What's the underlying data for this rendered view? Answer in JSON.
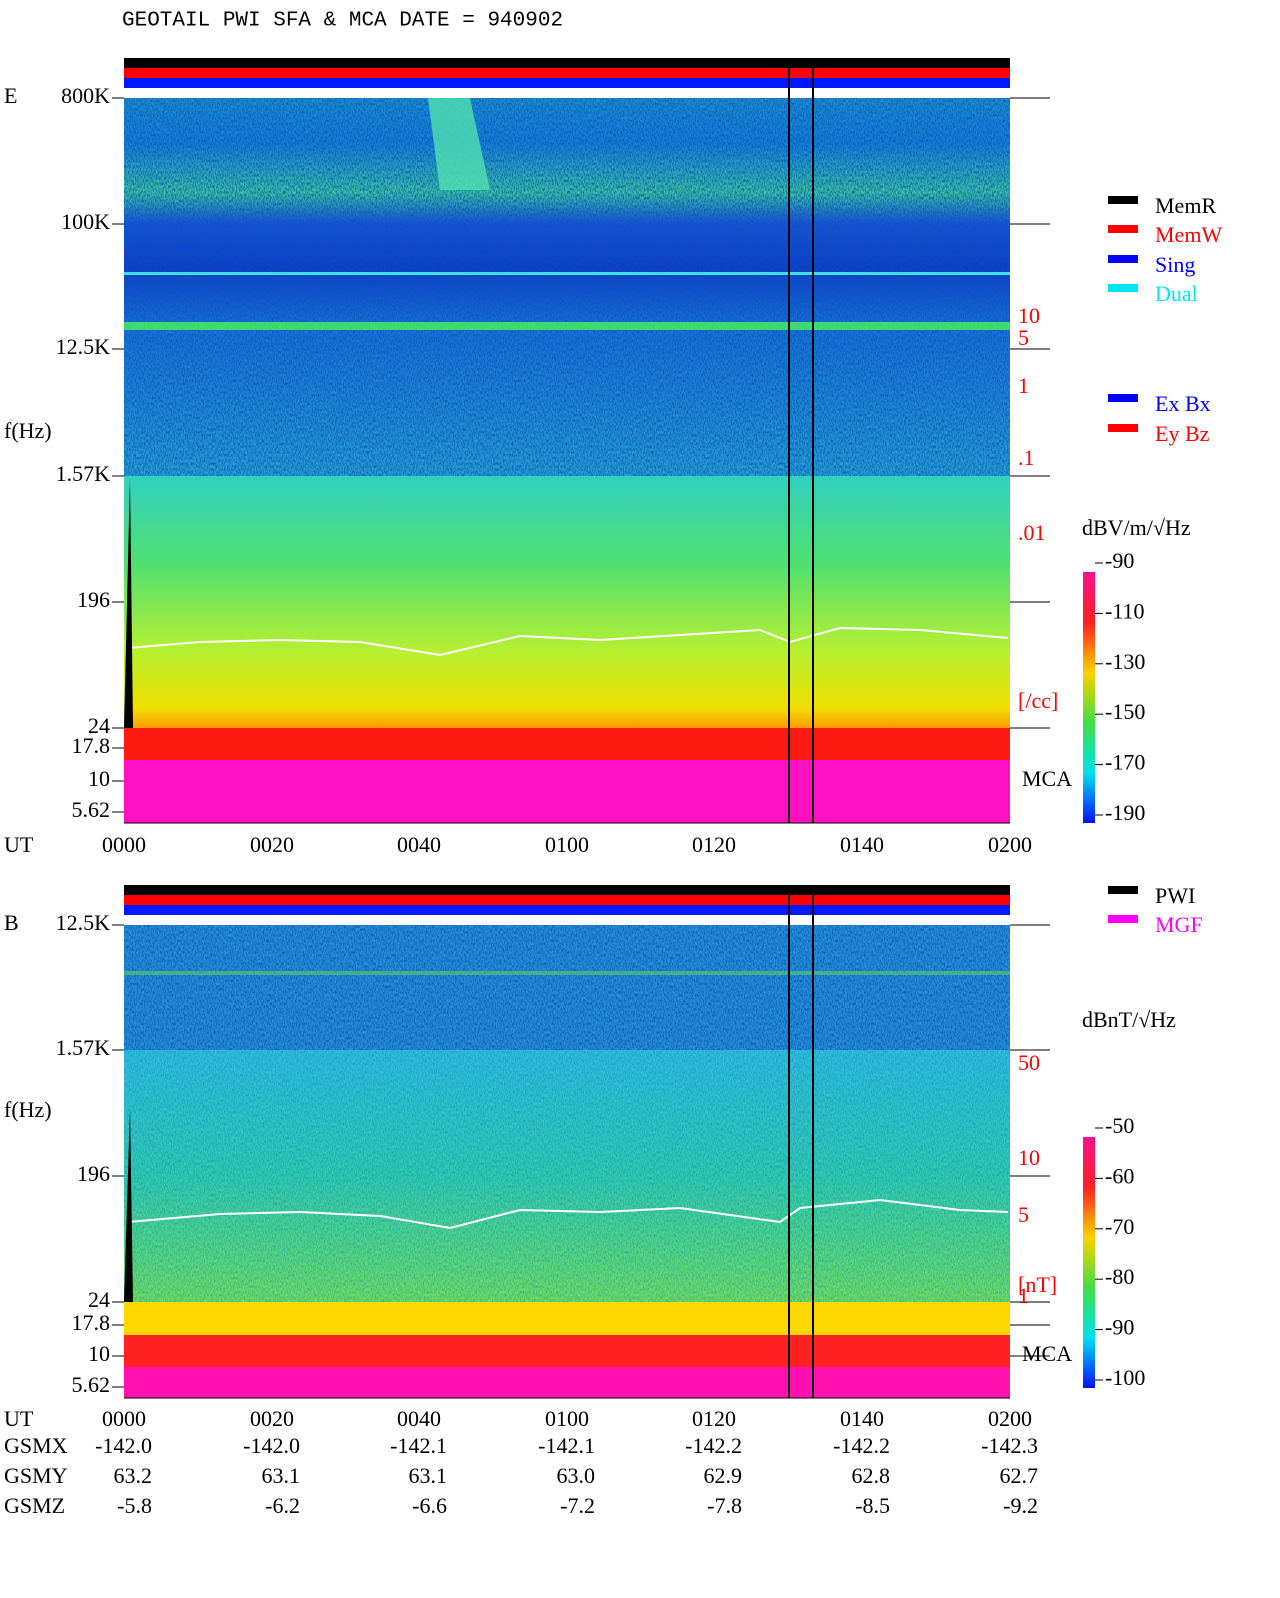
{
  "title": "GEOTAIL  PWI SFA & MCA   DATE = 940902",
  "legend_mode": [
    {
      "name": "MemR",
      "color": "#000000"
    },
    {
      "name": "MemW",
      "color": "#ff0000"
    },
    {
      "name": "Sing",
      "color": "#0000ff"
    },
    {
      "name": "Dual",
      "color": "#00e5ee"
    }
  ],
  "legend_axis": [
    {
      "name": "Ex Bx",
      "color": "#0000ff"
    },
    {
      "name": "Ey Bz",
      "color": "#ff0000"
    }
  ],
  "legend_source": [
    {
      "name": "PWI",
      "color": "#000000"
    },
    {
      "name": "MGF",
      "color": "#ff00ff"
    }
  ],
  "panels": [
    {
      "label": "E",
      "ylabel": "f(Hz)",
      "yticks": [
        "800K",
        "100K",
        "12.5K",
        "1.57K",
        "196",
        "24",
        "17.8",
        "10",
        "5.62"
      ],
      "xlabel": "UT",
      "xticks": [
        "0000",
        "0020",
        "0040",
        "0100",
        "0120",
        "0140",
        "0200"
      ],
      "right_scale": [
        "10",
        "5",
        "1",
        ".1",
        ".01",
        "[/cc]"
      ],
      "mca": "MCA",
      "colorbar_title": "dBV/m/√Hz",
      "colorbar_ticks": [
        -90,
        -110,
        -130,
        -150,
        -170,
        -190
      ]
    },
    {
      "label": "B",
      "ylabel": "f(Hz)",
      "yticks": [
        "12.5K",
        "1.57K",
        "196",
        "24",
        "17.8",
        "10",
        "5.62"
      ],
      "xlabel": "UT",
      "xticks": [
        "0000",
        "0020",
        "0040",
        "0100",
        "0120",
        "0140",
        "0200"
      ],
      "right_scale": [
        "50",
        "10",
        "5",
        "1",
        "[nT]"
      ],
      "mca": "MCA",
      "colorbar_title": "dBnT/√Hz",
      "colorbar_ticks": [
        -50,
        -60,
        -70,
        -80,
        -90,
        -100
      ]
    }
  ],
  "orbit": {
    "rows": [
      [
        "GSMX",
        "-142.0",
        "-142.0",
        "-142.1",
        "-142.1",
        "-142.2",
        "-142.2",
        "-142.3"
      ],
      [
        "GSMY",
        "63.2",
        "63.1",
        "63.1",
        "63.0",
        "62.9",
        "62.8",
        "62.7"
      ],
      [
        "GSMZ",
        "-5.8",
        "-6.2",
        "-6.6",
        "-7.2",
        "-7.8",
        "-8.5",
        "-9.2"
      ]
    ]
  }
}
